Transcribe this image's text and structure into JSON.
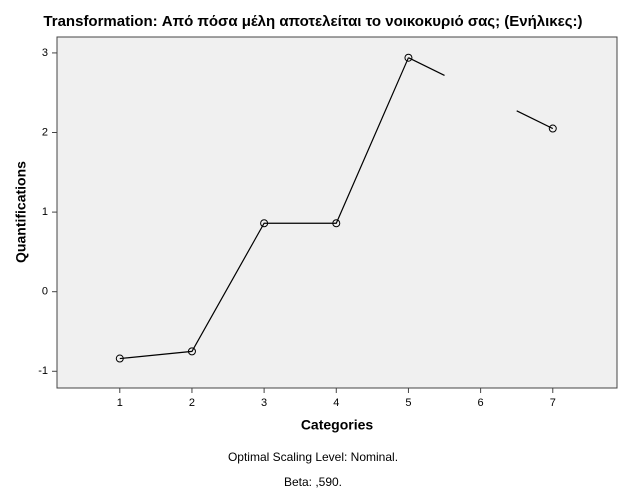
{
  "chart_data": {
    "type": "line",
    "title": "Transformation: Από πόσα μέλη αποτελείται το νοικοκυριό σας; (Ενήλικες:)",
    "x_label": "Categories",
    "y_label": "Quantifications",
    "notes": [
      "Optimal Scaling Level: Nominal.",
      "Beta: ,590."
    ],
    "x": [
      1,
      2,
      3,
      4,
      5,
      6,
      7
    ],
    "series": [
      {
        "color": "#000000",
        "values": [
          -0.84,
          -0.75,
          0.86,
          0.86,
          2.94,
          null,
          2.05
        ]
      }
    ],
    "xlim": [
      0.13,
      7.89
    ],
    "ylim": [
      -1.21,
      3.2
    ],
    "xticks": [
      1,
      2,
      3,
      4,
      5,
      6,
      7
    ],
    "yticks": [
      -1,
      0,
      1,
      2,
      3
    ],
    "grid": false
  }
}
